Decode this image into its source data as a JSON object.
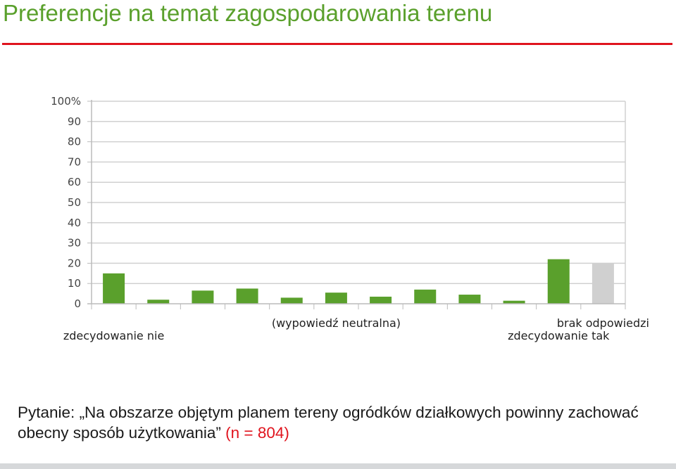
{
  "title": "Preferencje na temat zagospodarowania terenu",
  "question": {
    "prefix": "Pytanie:",
    "text": " „Na obszarze objętym planem tereny ogródków działkowych powinny zachować obecny sposób użytkowania”",
    "sample": " (n = 804)"
  },
  "colors": {
    "title": "#5aa02c",
    "rule": "#e0141e",
    "bar": "#5aa02c",
    "no_answer_bar": "#d0d0d0",
    "grid": "#d0d0d0",
    "footer": "#d6d8da"
  },
  "chart_data": {
    "type": "bar",
    "ylim": [
      0,
      100
    ],
    "y_ticks": [
      "0",
      "10",
      "20",
      "30",
      "40",
      "50",
      "60",
      "70",
      "80",
      "90",
      "100%"
    ],
    "grid": true,
    "values": [
      15,
      2,
      6.5,
      7.5,
      3,
      5.5,
      3.5,
      7,
      4.5,
      1.5,
      22,
      20
    ],
    "category_labels": [
      {
        "text": "zdecydowanie nie",
        "at_bar": 1
      },
      {
        "text": "(wypowiedź neutralna)",
        "at_bar": 6
      },
      {
        "text": "zdecydowanie tak",
        "at_bar": 11
      },
      {
        "text": "brak odpowiedzi",
        "at_bar": 12
      }
    ]
  }
}
